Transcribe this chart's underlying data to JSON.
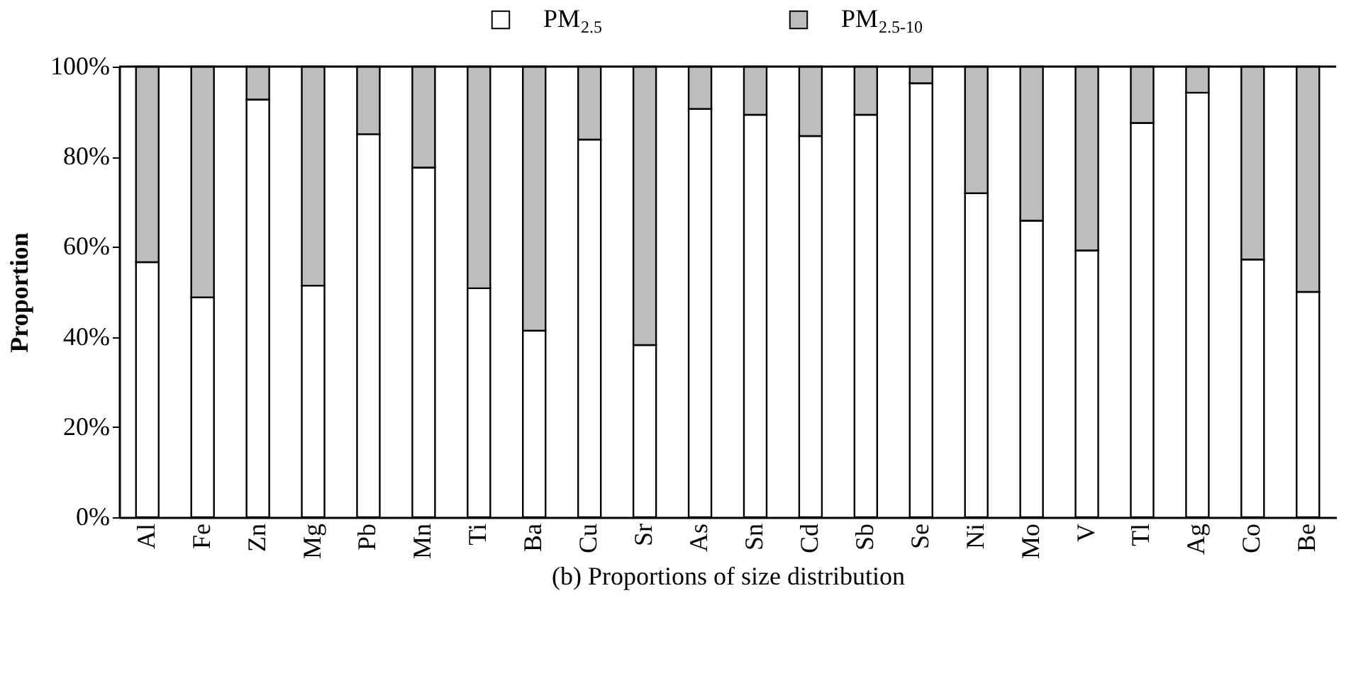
{
  "chart_data": {
    "type": "bar",
    "stacked": true,
    "xlabel": "(b) Proportions of size distribution",
    "ylabel": "Proportion",
    "categories": [
      "Al",
      "Fe",
      "Zn",
      "Mg",
      "Pb",
      "Mn",
      "Ti",
      "Ba",
      "Cu",
      "Sr",
      "As",
      "Sn",
      "Cd",
      "Sb",
      "Se",
      "Ni",
      "Mo",
      "V",
      "Tl",
      "Ag",
      "Co",
      "Be"
    ],
    "series": [
      {
        "name": "PM$_{2.5}$",
        "color": "#ffffff",
        "values": [
          56.6,
          48.8,
          92.7,
          51.4,
          85.0,
          77.6,
          50.8,
          41.4,
          83.8,
          38.2,
          90.6,
          89.3,
          84.6,
          89.3,
          96.3,
          71.9,
          65.8,
          59.2,
          87.5,
          94.2,
          57.2,
          50.0
        ]
      },
      {
        "name": "PM$_{2.5-10}$",
        "color": "#bdbdbd",
        "values": [
          43.4,
          51.2,
          7.3,
          48.6,
          15.0,
          22.4,
          49.2,
          58.6,
          16.2,
          61.8,
          9.4,
          10.7,
          15.4,
          10.7,
          3.7,
          28.1,
          34.2,
          40.8,
          12.5,
          5.8,
          42.8,
          50.0
        ]
      }
    ],
    "ylim": [
      0,
      100
    ],
    "yticks": [
      {
        "value": 0,
        "label": "0%"
      },
      {
        "value": 20,
        "label": "20%"
      },
      {
        "value": 40,
        "label": "40%"
      },
      {
        "value": 60,
        "label": "60%"
      },
      {
        "value": 80,
        "label": "80%"
      },
      {
        "value": 100,
        "label": "100%"
      }
    ],
    "grid": false,
    "legend": "top"
  }
}
